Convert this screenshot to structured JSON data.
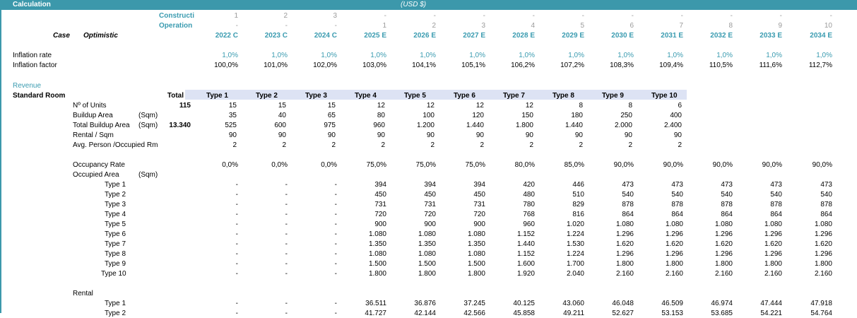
{
  "header": {
    "title": "Calculation",
    "currency": "(USD $)"
  },
  "timeline": {
    "construction_label": "Constructi",
    "operation_label": "Operation",
    "case_label": "Case",
    "case_value": "Optimistic",
    "construction": [
      "1",
      "2",
      "3",
      "-",
      "-",
      "-",
      "-",
      "-",
      "-",
      "-",
      "-",
      "-",
      "-"
    ],
    "operation": [
      "-",
      "-",
      "-",
      "1",
      "2",
      "3",
      "4",
      "5",
      "6",
      "7",
      "8",
      "9",
      "10"
    ],
    "years": [
      "2022 C",
      "2023 C",
      "2024 C",
      "2025 E",
      "2026 E",
      "2027 E",
      "2028 E",
      "2029 E",
      "2030 E",
      "2031 E",
      "2032 E",
      "2033 E",
      "2034 E"
    ]
  },
  "inflation": {
    "rate_label": "Inflation rate",
    "factor_label": "Inflation factor",
    "rate": [
      "1,0%",
      "1,0%",
      "1,0%",
      "1,0%",
      "1,0%",
      "1,0%",
      "1,0%",
      "1,0%",
      "1,0%",
      "1,0%",
      "1,0%",
      "1,0%",
      "1,0%"
    ],
    "factor": [
      "100,0%",
      "101,0%",
      "102,0%",
      "103,0%",
      "104,1%",
      "105,1%",
      "106,2%",
      "107,2%",
      "108,3%",
      "109,4%",
      "110,5%",
      "111,6%",
      "112,7%"
    ]
  },
  "revenue": {
    "section_label": "Revenue",
    "room_label": "Standard Room",
    "total_label": "Total",
    "types": [
      "Type 1",
      "Type 2",
      "Type 3",
      "Type 4",
      "Type 5",
      "Type 6",
      "Type 7",
      "Type 8",
      "Type 9",
      "Type 10"
    ],
    "units": {
      "label": "Nº of Units",
      "total": "115",
      "values": [
        "15",
        "15",
        "15",
        "12",
        "12",
        "12",
        "12",
        "8",
        "8",
        "6"
      ]
    },
    "buildup": {
      "label": "Buildup Area",
      "unit": "(Sqm)",
      "values": [
        "35",
        "40",
        "65",
        "80",
        "100",
        "120",
        "150",
        "180",
        "250",
        "400"
      ]
    },
    "total_buildup": {
      "label": "Total Buildup Area",
      "unit": "(Sqm)",
      "total": "13.340",
      "values": [
        "525",
        "600",
        "975",
        "960",
        "1.200",
        "1.440",
        "1.800",
        "1.440",
        "2.000",
        "2.400"
      ]
    },
    "rental_sqm": {
      "label": "Rental / Sqm",
      "values": [
        "90",
        "90",
        "90",
        "90",
        "90",
        "90",
        "90",
        "90",
        "90",
        "90"
      ]
    },
    "avg_person": {
      "label": "Avg. Person /Occupied Rm",
      "values": [
        "2",
        "2",
        "2",
        "2",
        "2",
        "2",
        "2",
        "2",
        "2",
        "2"
      ]
    },
    "occupancy": {
      "label": "Occupancy Rate",
      "values": [
        "0,0%",
        "0,0%",
        "0,0%",
        "75,0%",
        "75,0%",
        "75,0%",
        "80,0%",
        "85,0%",
        "90,0%",
        "90,0%",
        "90,0%",
        "90,0%",
        "90,0%"
      ]
    },
    "occupied_area": {
      "label": "Occupied Area",
      "unit": "(Sqm)",
      "rows": [
        {
          "label": "Type  1",
          "values": [
            "-",
            "-",
            "-",
            "394",
            "394",
            "394",
            "420",
            "446",
            "473",
            "473",
            "473",
            "473",
            "473"
          ]
        },
        {
          "label": "Type  2",
          "values": [
            "-",
            "-",
            "-",
            "450",
            "450",
            "450",
            "480",
            "510",
            "540",
            "540",
            "540",
            "540",
            "540"
          ]
        },
        {
          "label": "Type  3",
          "values": [
            "-",
            "-",
            "-",
            "731",
            "731",
            "731",
            "780",
            "829",
            "878",
            "878",
            "878",
            "878",
            "878"
          ]
        },
        {
          "label": "Type  4",
          "values": [
            "-",
            "-",
            "-",
            "720",
            "720",
            "720",
            "768",
            "816",
            "864",
            "864",
            "864",
            "864",
            "864"
          ]
        },
        {
          "label": "Type  5",
          "values": [
            "-",
            "-",
            "-",
            "900",
            "900",
            "900",
            "960",
            "1.020",
            "1.080",
            "1.080",
            "1.080",
            "1.080",
            "1.080"
          ]
        },
        {
          "label": "Type  6",
          "values": [
            "-",
            "-",
            "-",
            "1.080",
            "1.080",
            "1.080",
            "1.152",
            "1.224",
            "1.296",
            "1.296",
            "1.296",
            "1.296",
            "1.296"
          ]
        },
        {
          "label": "Type  7",
          "values": [
            "-",
            "-",
            "-",
            "1.350",
            "1.350",
            "1.350",
            "1.440",
            "1.530",
            "1.620",
            "1.620",
            "1.620",
            "1.620",
            "1.620"
          ]
        },
        {
          "label": "Type  8",
          "values": [
            "-",
            "-",
            "-",
            "1.080",
            "1.080",
            "1.080",
            "1.152",
            "1.224",
            "1.296",
            "1.296",
            "1.296",
            "1.296",
            "1.296"
          ]
        },
        {
          "label": "Type  9",
          "values": [
            "-",
            "-",
            "-",
            "1.500",
            "1.500",
            "1.500",
            "1.600",
            "1.700",
            "1.800",
            "1.800",
            "1.800",
            "1.800",
            "1.800"
          ]
        },
        {
          "label": "Type  10",
          "values": [
            "-",
            "-",
            "-",
            "1.800",
            "1.800",
            "1.800",
            "1.920",
            "2.040",
            "2.160",
            "2.160",
            "2.160",
            "2.160",
            "2.160"
          ]
        }
      ]
    },
    "rental": {
      "label": "Rental",
      "rows": [
        {
          "label": "Type  1",
          "values": [
            "-",
            "-",
            "-",
            "36.511",
            "36.876",
            "37.245",
            "40.125",
            "43.060",
            "46.048",
            "46.509",
            "46.974",
            "47.444",
            "47.918"
          ]
        },
        {
          "label": "Type  2",
          "values": [
            "-",
            "-",
            "-",
            "41.727",
            "42.144",
            "42.566",
            "45.858",
            "49.211",
            "52.627",
            "53.153",
            "53.685",
            "54.221",
            "54.764"
          ]
        }
      ]
    }
  }
}
